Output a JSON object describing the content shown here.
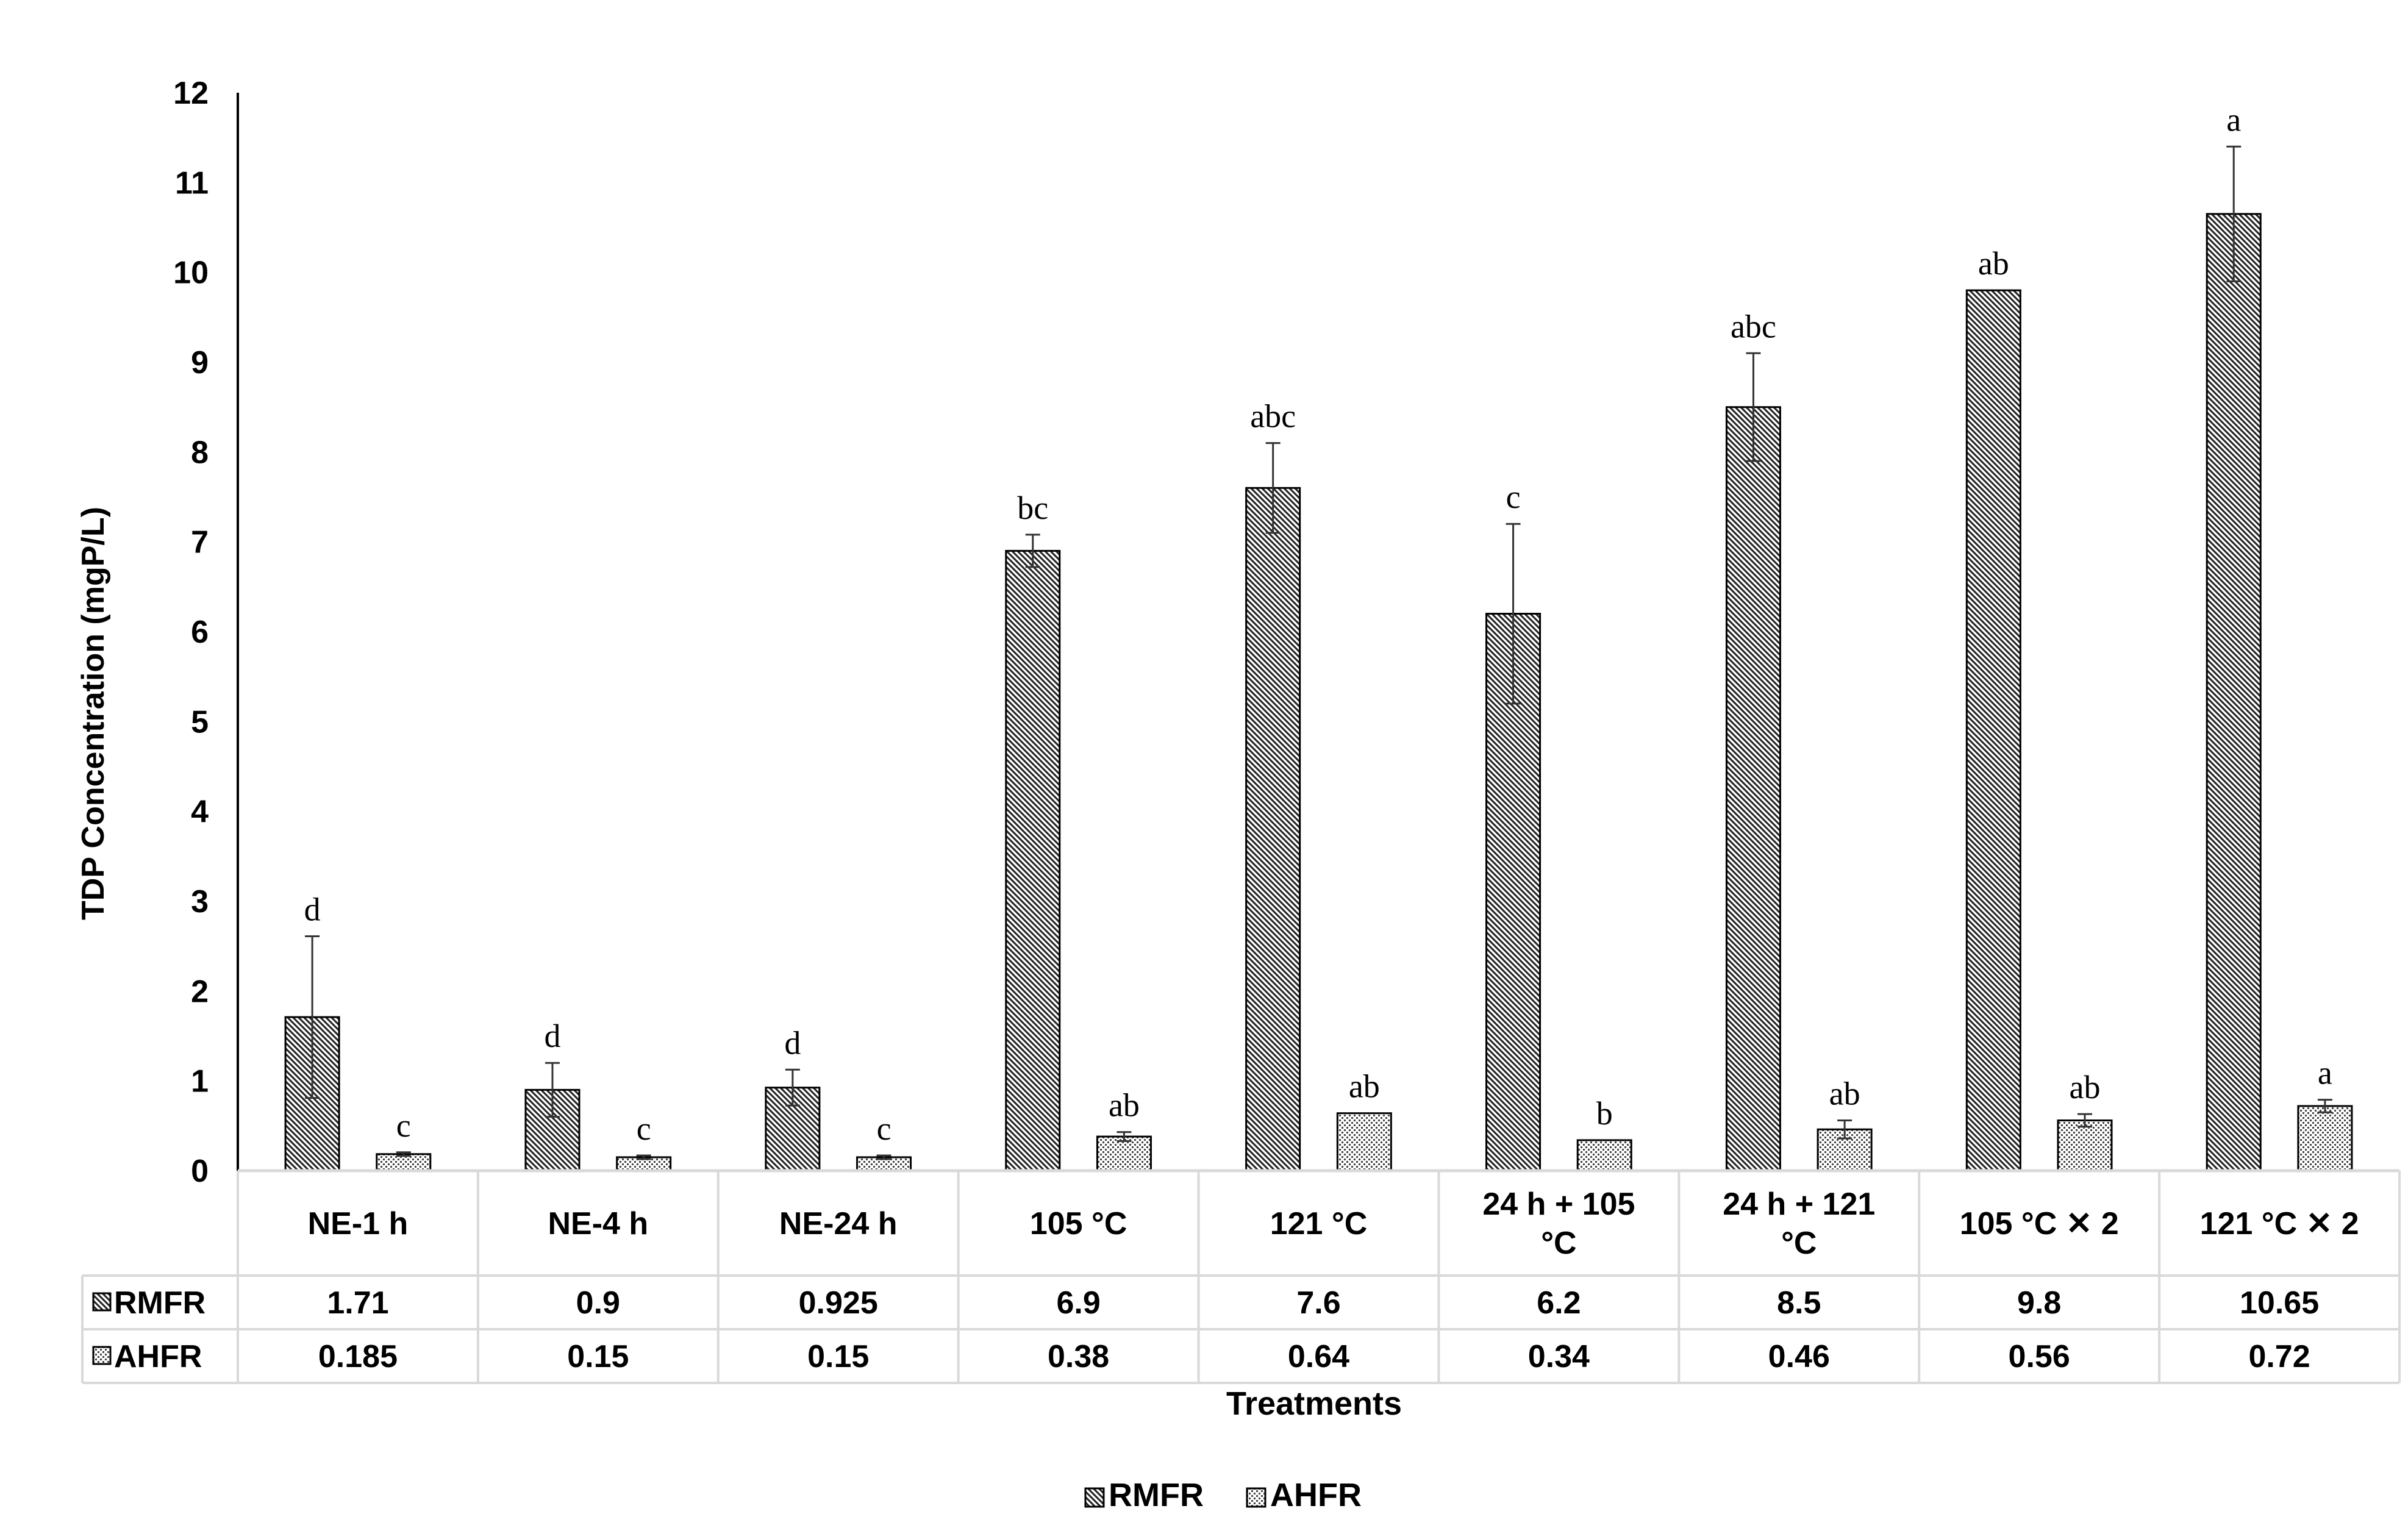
{
  "chart_data": {
    "type": "bar",
    "title": "",
    "ylabel": "TDP Concentration (mgP/L)",
    "xlabel": "Treatments",
    "ylim": [
      0,
      12
    ],
    "yticks": [
      "0",
      "1",
      "2",
      "3",
      "4",
      "5",
      "6",
      "7",
      "8",
      "9",
      "10",
      "11",
      "12"
    ],
    "categories": [
      [
        "NE-1 h"
      ],
      [
        "NE-4 h"
      ],
      [
        "NE-24 h"
      ],
      [
        "105 °C"
      ],
      [
        "121 °C"
      ],
      [
        "24 h + 105",
        "°C"
      ],
      [
        "24 h + 121",
        "°C"
      ],
      [
        "105 °C ✕ 2"
      ],
      [
        "121 °C ✕ 2"
      ]
    ],
    "legend_position": "bottom",
    "data_table": true,
    "series": [
      {
        "name": "RMFR",
        "pattern": "diagonal-hatch",
        "values": [
          1.71,
          0.9,
          0.925,
          6.9,
          7.6,
          6.2,
          8.5,
          9.8,
          10.65
        ],
        "value_labels": [
          "1.71",
          "0.9",
          "0.925",
          "6.9",
          "7.6",
          "6.2",
          "8.5",
          "9.8",
          "10.65"
        ],
        "errors": [
          0.9,
          0.3,
          0.2,
          0.18,
          0.5,
          1.0,
          0.6,
          0,
          0.75
        ],
        "letters": [
          "d",
          "d",
          "d",
          "bc",
          "abc",
          "c",
          "abc",
          "ab",
          "a"
        ]
      },
      {
        "name": "AHFR",
        "pattern": "dotted",
        "values": [
          0.185,
          0.15,
          0.15,
          0.38,
          0.64,
          0.34,
          0.46,
          0.56,
          0.72
        ],
        "value_labels": [
          "0.185",
          "0.15",
          "0.15",
          "0.38",
          "0.64",
          "0.34",
          "0.46",
          "0.56",
          "0.72"
        ],
        "errors": [
          0.02,
          0.02,
          0.02,
          0.05,
          0,
          0,
          0.1,
          0.07,
          0.07
        ],
        "letters": [
          "c",
          "c",
          "c",
          "ab",
          "ab",
          "b",
          "ab",
          "ab",
          "a"
        ]
      }
    ],
    "colors": {
      "ink": "#000000",
      "grid": "#d9d9d9"
    }
  }
}
